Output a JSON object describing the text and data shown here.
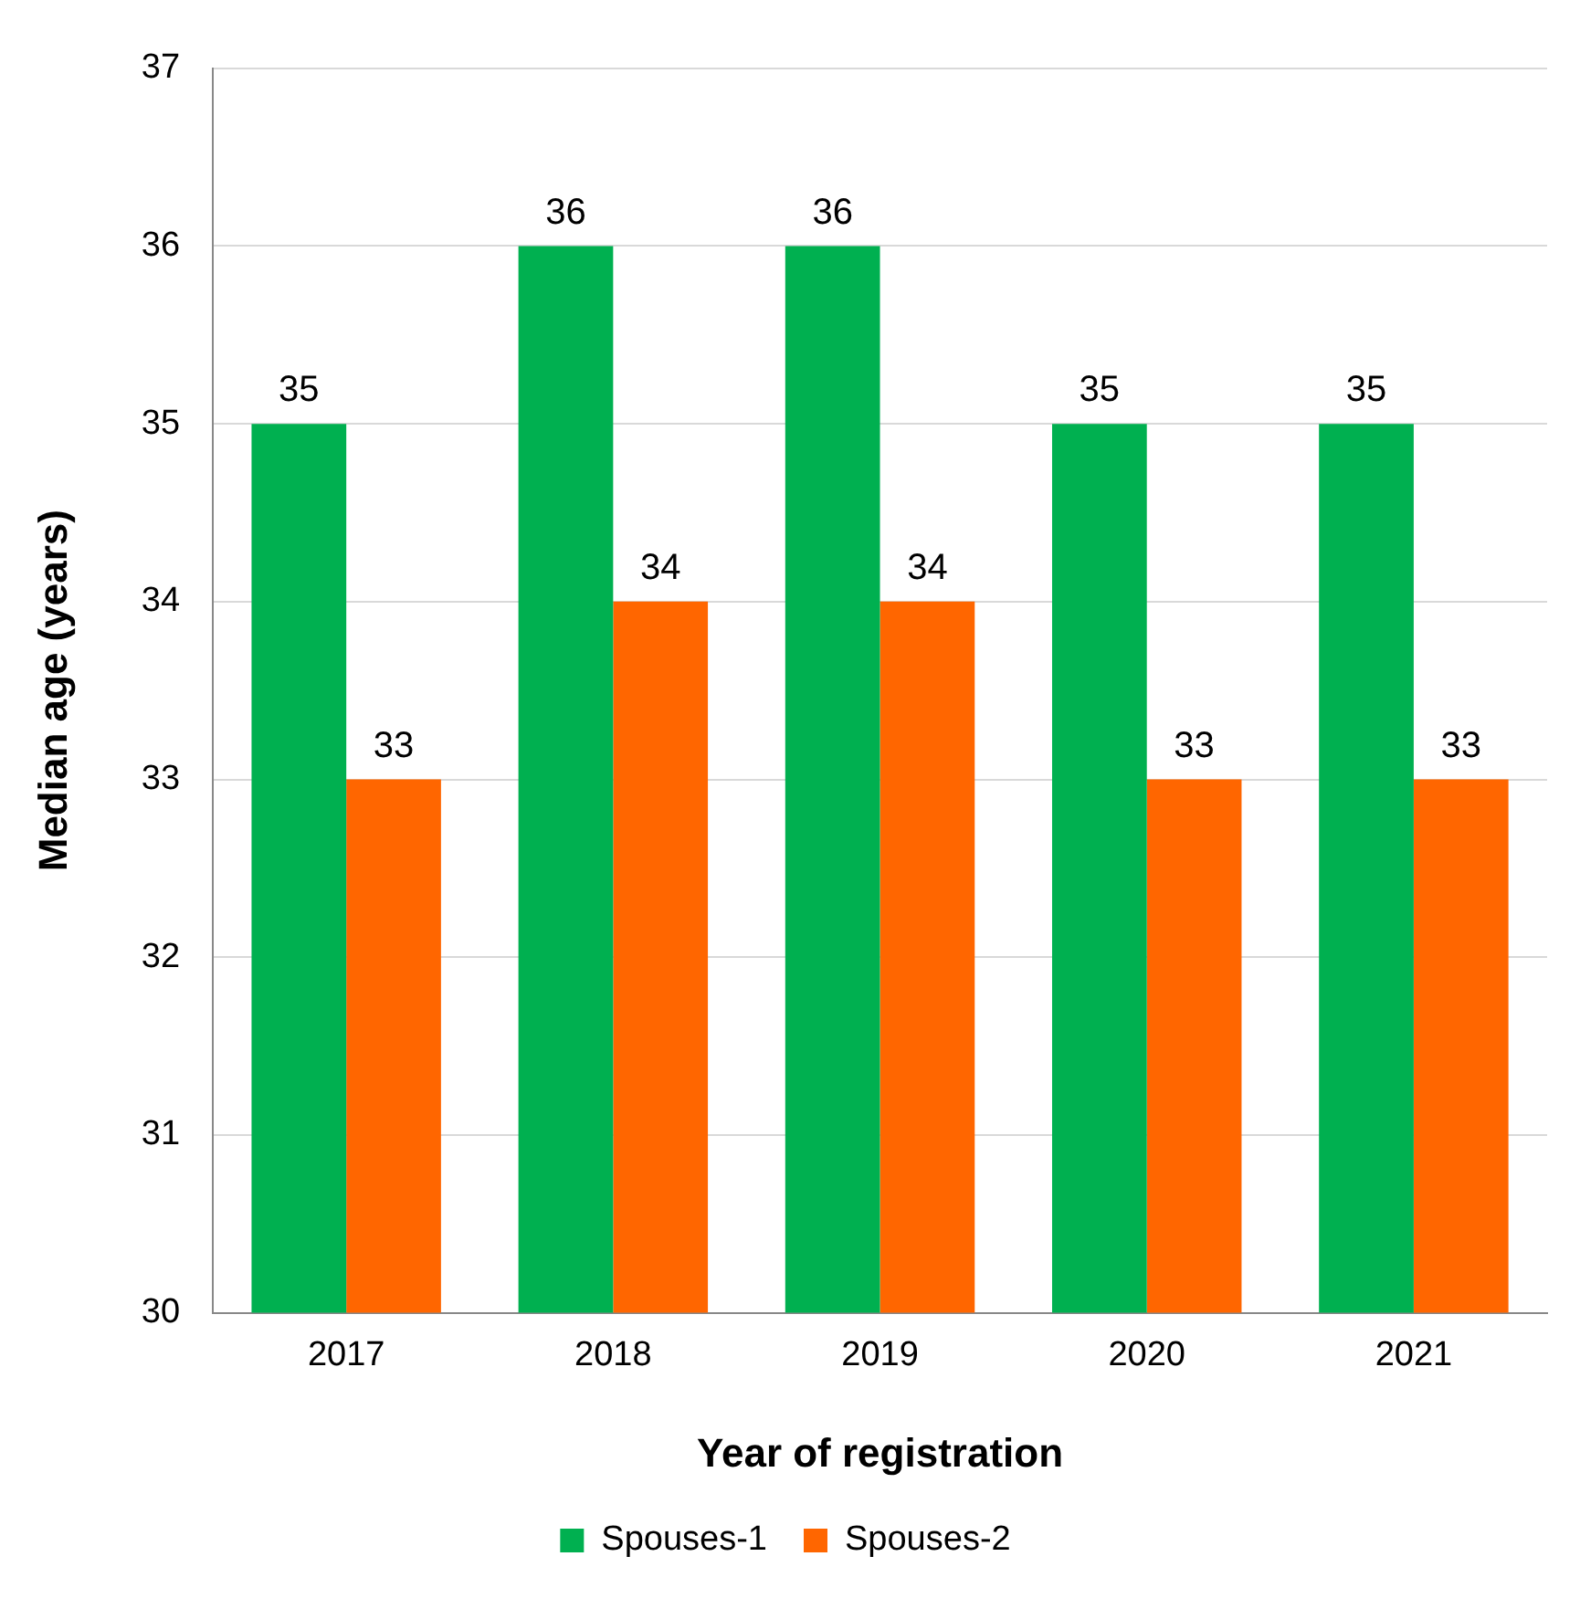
{
  "chart_data": {
    "type": "bar",
    "xlabel": "Year of registration",
    "ylabel": "Median age (years)",
    "categories": [
      "2017",
      "2018",
      "2019",
      "2020",
      "2021"
    ],
    "series": [
      {
        "name": "Spouses-1",
        "color": "#00b050",
        "values": [
          35,
          36,
          36,
          35,
          35
        ]
      },
      {
        "name": "Spouses-2",
        "color": "#ff6600",
        "values": [
          33,
          34,
          34,
          33,
          33
        ]
      }
    ],
    "ylim": [
      30,
      37
    ],
    "yticks": [
      30,
      31,
      32,
      33,
      34,
      35,
      36,
      37
    ],
    "grid": "y",
    "legend": "bottom",
    "data_labels": true
  }
}
